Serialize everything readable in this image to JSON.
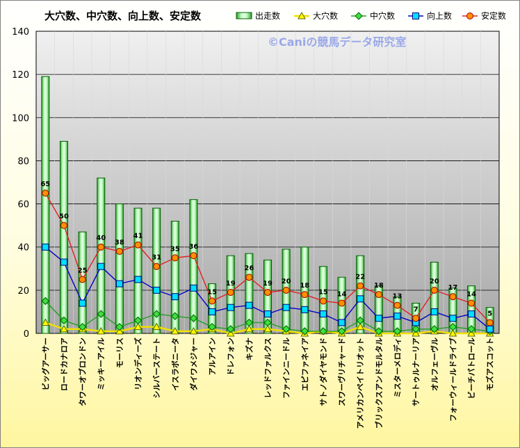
{
  "chart_data": {
    "type": "bar",
    "title": "大穴数、中穴数、向上数、安定数",
    "watermark": "©Caniの競馬データ研究室",
    "ylim": [
      0,
      140
    ],
    "yticks": [
      0,
      20,
      40,
      60,
      80,
      100,
      120,
      140
    ],
    "grid": true,
    "legend_position": "top",
    "categories": [
      "ビッグアーサー",
      "ロードカナロア",
      "タワーオブロンドン",
      "ミッキーアイル",
      "モーリス",
      "リオンディーズ",
      "シルバーステート",
      "イスラボニータ",
      "ダイワメジャー",
      "アルアイン",
      "ドレフォン",
      "キズナ",
      "レッドファルクス",
      "ファインニードル",
      "エピファネイア",
      "サトノダイヤモンド",
      "スワーヴリチャード",
      "アメリカンペイトリオット",
      "ブリックスアンドモルタル",
      "ミスターメロディ",
      "サートゥルナーリア",
      "オルフェーヴル",
      "フォーウィールドライブ",
      "ビーチパトロール",
      "モズアスコット"
    ],
    "series": [
      {
        "name": "出走数",
        "kind": "bar",
        "color": "#88f088",
        "values": [
          119,
          89,
          47,
          72,
          60,
          58,
          58,
          52,
          62,
          23,
          36,
          37,
          34,
          39,
          40,
          31,
          26,
          36,
          22,
          17,
          14,
          33,
          21,
          22,
          12
        ]
      },
      {
        "name": "大穴数",
        "kind": "line",
        "color": "#f0e000",
        "values": [
          5,
          2,
          2,
          1,
          1,
          3,
          3,
          1,
          1,
          2,
          0,
          2,
          2,
          1,
          0,
          1,
          0,
          3,
          0,
          0,
          0,
          1,
          0,
          0,
          0
        ]
      },
      {
        "name": "中穴数",
        "kind": "line",
        "color": "#20a020",
        "values": [
          15,
          6,
          3,
          9,
          3,
          6,
          9,
          8,
          7,
          3,
          2,
          5,
          5,
          2,
          1,
          1,
          1,
          6,
          1,
          1,
          2,
          2,
          3,
          2,
          1
        ]
      },
      {
        "name": "向上数",
        "kind": "line",
        "color": "#0000c0",
        "values": [
          40,
          33,
          14,
          31,
          23,
          25,
          20,
          17,
          21,
          10,
          12,
          13,
          9,
          12,
          11,
          9,
          5,
          16,
          7,
          8,
          5,
          10,
          7,
          9,
          2
        ]
      },
      {
        "name": "安定数",
        "kind": "line",
        "color": "#e02020",
        "values": [
          65,
          50,
          25,
          40,
          38,
          41,
          31,
          35,
          36,
          15,
          19,
          26,
          19,
          20,
          18,
          15,
          14,
          22,
          18,
          13,
          7,
          20,
          17,
          14,
          5
        ]
      }
    ]
  }
}
